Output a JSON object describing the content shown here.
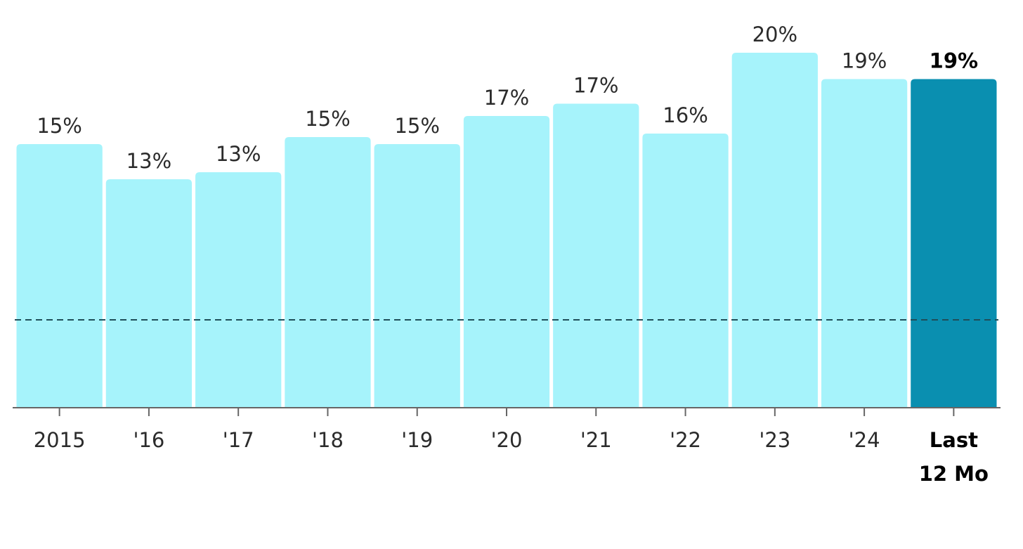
{
  "chart_data": {
    "type": "bar",
    "categories": [
      "2015",
      "'16",
      "'17",
      "'18",
      "'19",
      "'20",
      "'21",
      "'22",
      "'23",
      "'24",
      "Last 12 Mo"
    ],
    "values": [
      15.0,
      13.0,
      13.4,
      15.4,
      15.0,
      16.6,
      17.3,
      15.6,
      20.2,
      18.7,
      18.7
    ],
    "value_labels": [
      "15%",
      "13%",
      "13%",
      "15%",
      "15%",
      "17%",
      "17%",
      "16%",
      "20%",
      "19%",
      "19%"
    ],
    "colors": [
      "#a6f3fb",
      "#a6f3fb",
      "#a6f3fb",
      "#a6f3fb",
      "#a6f3fb",
      "#a6f3fb",
      "#a6f3fb",
      "#a6f3fb",
      "#a6f3fb",
      "#a6f3fb",
      "#0a8fb0"
    ],
    "highlight_index": 10,
    "reference_line": 5.0,
    "ylim": [
      0,
      23.2
    ]
  }
}
